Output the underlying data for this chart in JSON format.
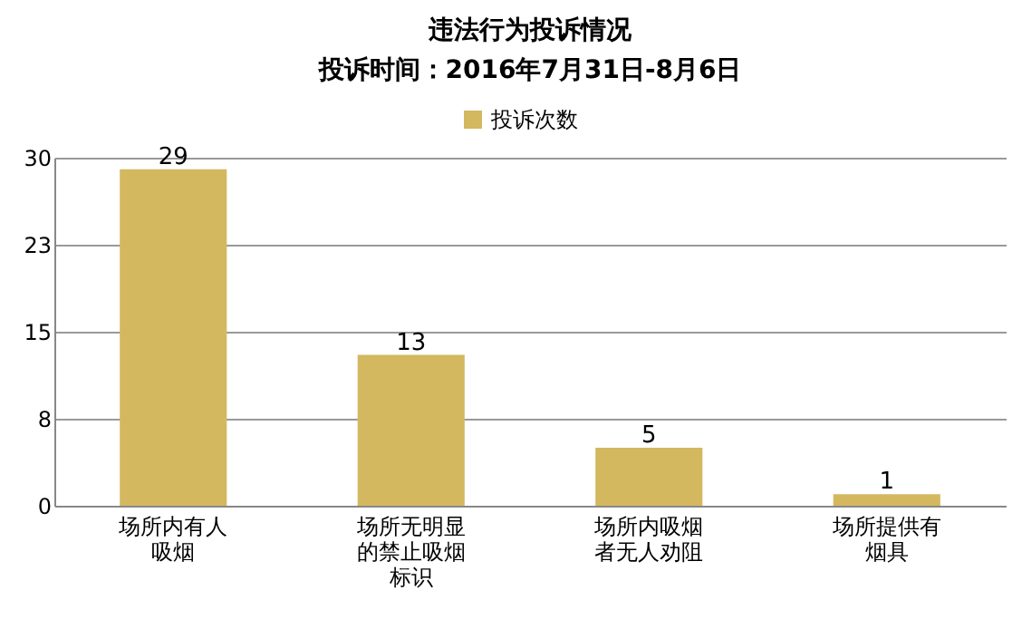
{
  "chart_data": {
    "type": "bar",
    "title": "违法行为投诉情况",
    "subtitle": "投诉时间：2016年7月31日-8月6日",
    "categories": [
      "场所内有人吸烟",
      "场所无明显的禁止吸烟标识",
      "场所内吸烟者无人劝阻",
      "场所提供有烟具"
    ],
    "series": [
      {
        "name": "投诉次数",
        "color": "#d4b860",
        "values": [
          29,
          13,
          5,
          1
        ]
      }
    ],
    "ylim": [
      0,
      30
    ],
    "yticks": [
      0,
      {
        "value": 7.5,
        "label": "8"
      },
      15,
      {
        "value": 22.5,
        "label": "23"
      },
      30
    ],
    "grid": "y",
    "legend": "top",
    "data_labels": true
  }
}
